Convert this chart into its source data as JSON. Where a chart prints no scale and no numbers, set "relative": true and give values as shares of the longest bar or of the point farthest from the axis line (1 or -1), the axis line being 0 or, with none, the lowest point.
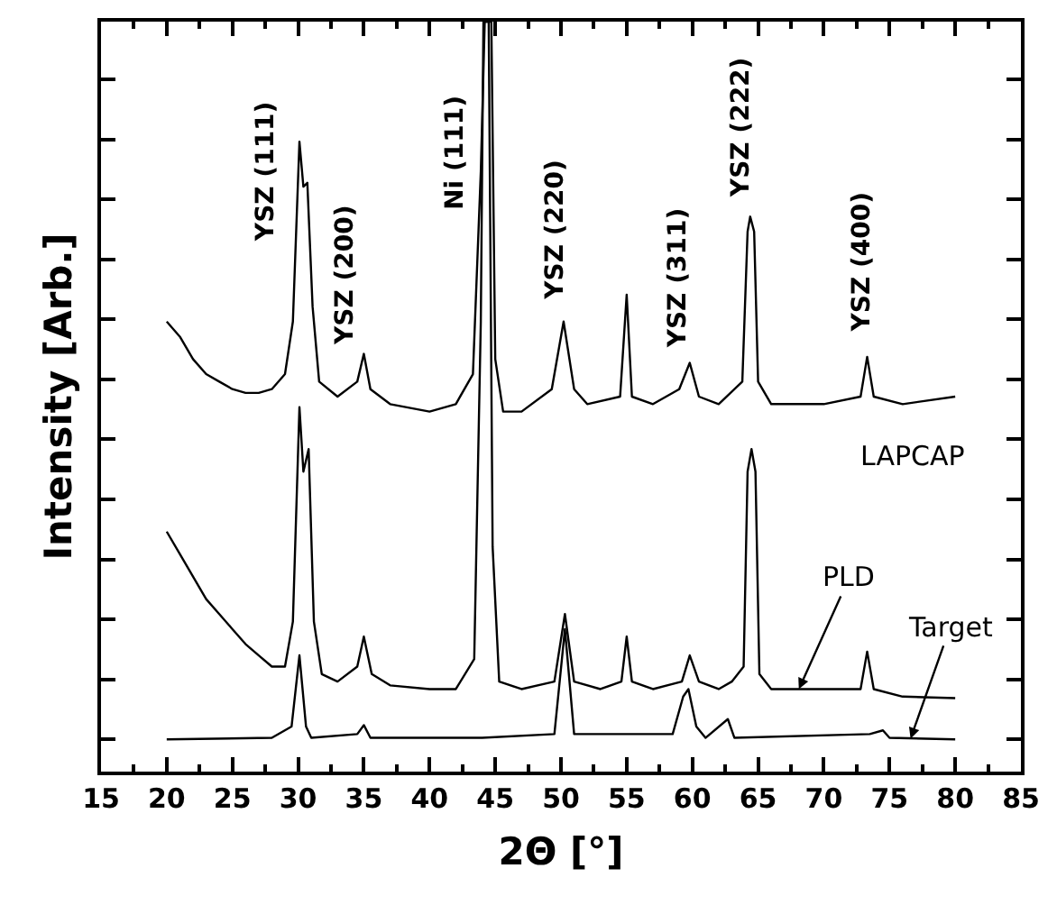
{
  "chart_data": {
    "type": "line",
    "relative": true,
    "xlabel": "2Θ [°]",
    "ylabel": "Intensity [Arb.]",
    "xlim": [
      15,
      85
    ],
    "xticks": [
      15,
      20,
      25,
      30,
      35,
      40,
      45,
      50,
      55,
      60,
      65,
      70,
      75,
      80,
      85
    ],
    "tick_labels": "x",
    "series": [
      {
        "color": "#000000",
        "x": [
          20,
          21,
          22,
          23,
          24,
          25,
          26,
          27,
          28,
          29,
          29.6,
          30.1,
          30.4,
          30.7,
          31.1,
          31.6,
          33,
          34.5,
          35,
          35.5,
          37,
          40,
          42,
          43.3,
          43.9,
          44.2,
          44.7,
          45.0,
          45.6,
          47,
          49.3,
          50.2,
          51,
          52,
          54.5,
          55,
          55.4,
          57,
          59,
          59.8,
          60.5,
          62,
          63.8,
          64.2,
          64.4,
          64.7,
          65.0,
          66,
          70,
          72.8,
          73.3,
          73.8,
          76,
          80
        ],
        "values": [
          0.6,
          0.58,
          0.55,
          0.53,
          0.52,
          0.51,
          0.505,
          0.505,
          0.51,
          0.53,
          0.6,
          0.84,
          0.78,
          0.785,
          0.62,
          0.52,
          0.5,
          0.52,
          0.557,
          0.51,
          0.49,
          0.48,
          0.49,
          0.53,
          0.8,
          1.0,
          1.0,
          0.55,
          0.48,
          0.48,
          0.51,
          0.6,
          0.51,
          0.49,
          0.5,
          0.636,
          0.5,
          0.49,
          0.51,
          0.545,
          0.5,
          0.49,
          0.52,
          0.72,
          0.74,
          0.72,
          0.52,
          0.49,
          0.49,
          0.5,
          0.553,
          0.5,
          0.49,
          0.5
        ]
      },
      {
        "color": "#000000",
        "x": [
          20,
          21,
          22,
          23,
          24,
          25,
          26,
          27,
          28,
          29,
          29.6,
          30.1,
          30.4,
          30.8,
          31.2,
          31.8,
          33,
          34.5,
          35,
          35.6,
          37,
          40,
          42,
          43.4,
          43.9,
          44.1,
          44.5,
          44.8,
          45.3,
          47,
          49.5,
          50.3,
          51,
          53,
          54.6,
          55,
          55.4,
          57,
          59.2,
          59.8,
          60.5,
          62,
          63,
          63.9,
          64.2,
          64.5,
          64.8,
          65.1,
          66,
          70,
          72.8,
          73.3,
          73.8,
          76,
          80
        ],
        "values": [
          0.32,
          0.29,
          0.26,
          0.23,
          0.21,
          0.19,
          0.17,
          0.155,
          0.14,
          0.14,
          0.2,
          0.486,
          0.4,
          0.43,
          0.2,
          0.13,
          0.12,
          0.14,
          0.18,
          0.13,
          0.115,
          0.11,
          0.11,
          0.15,
          0.6,
          1.0,
          1.0,
          0.3,
          0.12,
          0.11,
          0.12,
          0.21,
          0.12,
          0.11,
          0.12,
          0.18,
          0.12,
          0.11,
          0.12,
          0.155,
          0.12,
          0.11,
          0.12,
          0.14,
          0.4,
          0.43,
          0.4,
          0.13,
          0.11,
          0.11,
          0.11,
          0.16,
          0.11,
          0.1,
          0.098
        ]
      },
      {
        "color": "#000000",
        "x": [
          20,
          28,
          29.5,
          30.1,
          30.6,
          31,
          34.5,
          35,
          35.5,
          44,
          49.5,
          50.3,
          51,
          58.5,
          59.3,
          59.7,
          60.3,
          61,
          62.7,
          63.2,
          73.5,
          74.5,
          75,
          80
        ],
        "values": [
          0.043,
          0.045,
          0.06,
          0.155,
          0.06,
          0.045,
          0.05,
          0.062,
          0.045,
          0.045,
          0.05,
          0.19,
          0.05,
          0.05,
          0.1,
          0.11,
          0.06,
          0.045,
          0.07,
          0.045,
          0.05,
          0.055,
          0.045,
          0.043
        ]
      }
    ],
    "annotations": [
      {
        "text": "YSZ (111)",
        "x": 30.1,
        "y": 0.84
      },
      {
        "text": "YSZ (200)",
        "x": 35,
        "y": 0.557
      },
      "Ni (111)",
      {
        "text": "YSZ (220)",
        "x": 50.2,
        "y": 0.6
      },
      {
        "text": "YSZ (311)",
        "x": 59.8,
        "y": 0.545
      },
      {
        "text": "YSZ (222)",
        "x": 64.4,
        "y": 0.74
      },
      {
        "text": "YSZ (400)",
        "x": 73.3,
        "y": 0.553
      },
      {
        "text": "LAPCAP",
        "x": 80,
        "y": 0.5
      },
      {
        "text": "PLD",
        "x": 68.1,
        "y": 0.11
      },
      {
        "text": "Target",
        "x": 76.6,
        "y": 0.044
      }
    ]
  }
}
